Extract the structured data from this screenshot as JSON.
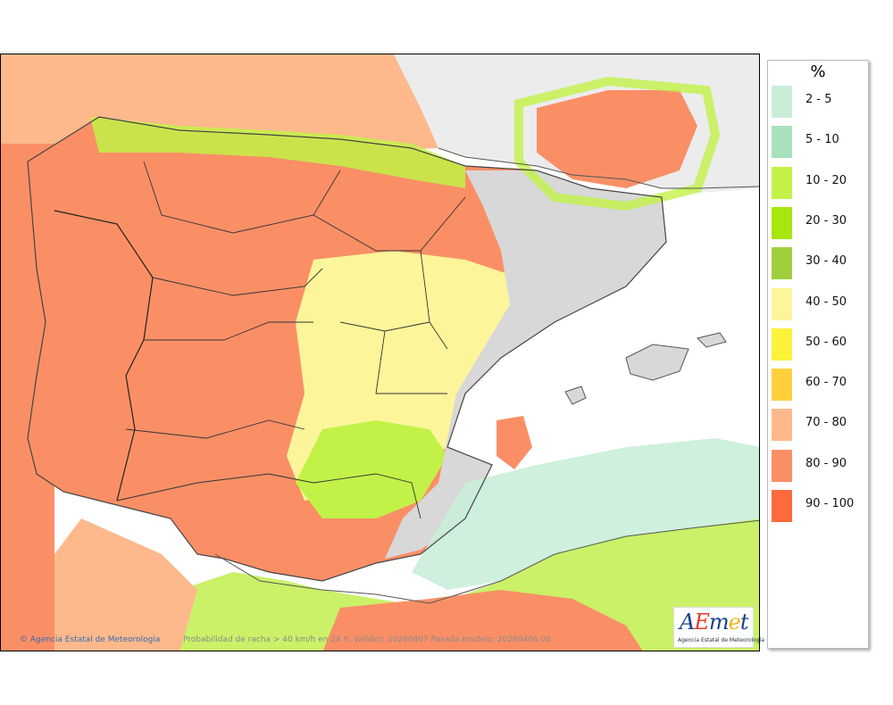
{
  "map": {
    "footer_credit": "Agencia Estatal de Meteorología",
    "caption": "Probabilidad de racha > 40 km/h en 24 h. Validez: 20260407 Pasada modelo: 20260406 00",
    "logo_text": "AEmet",
    "logo_subtitle": "Agencia Estatal de Meteorología",
    "colors": {
      "sea": "#ffffff",
      "land_outside": "#ececec",
      "border": "#222222"
    }
  },
  "legend": {
    "unit": "%",
    "items": [
      {
        "label": "2 - 5",
        "color": "#c9eed8"
      },
      {
        "label": "5 - 10",
        "color": "#a9e1bb"
      },
      {
        "label": "10 - 20",
        "color": "#c2f247"
      },
      {
        "label": "20 - 30",
        "color": "#a7e60f"
      },
      {
        "label": "30 - 40",
        "color": "#9fcf3c"
      },
      {
        "label": "40 - 50",
        "color": "#fdf59a"
      },
      {
        "label": "50 - 60",
        "color": "#fcf23a"
      },
      {
        "label": "60 - 70",
        "color": "#ffd03c"
      },
      {
        "label": "70 - 80",
        "color": "#fdb98b"
      },
      {
        "label": "80 - 90",
        "color": "#fa8f66"
      },
      {
        "label": "90 - 100",
        "color": "#ff6a3d"
      }
    ]
  }
}
